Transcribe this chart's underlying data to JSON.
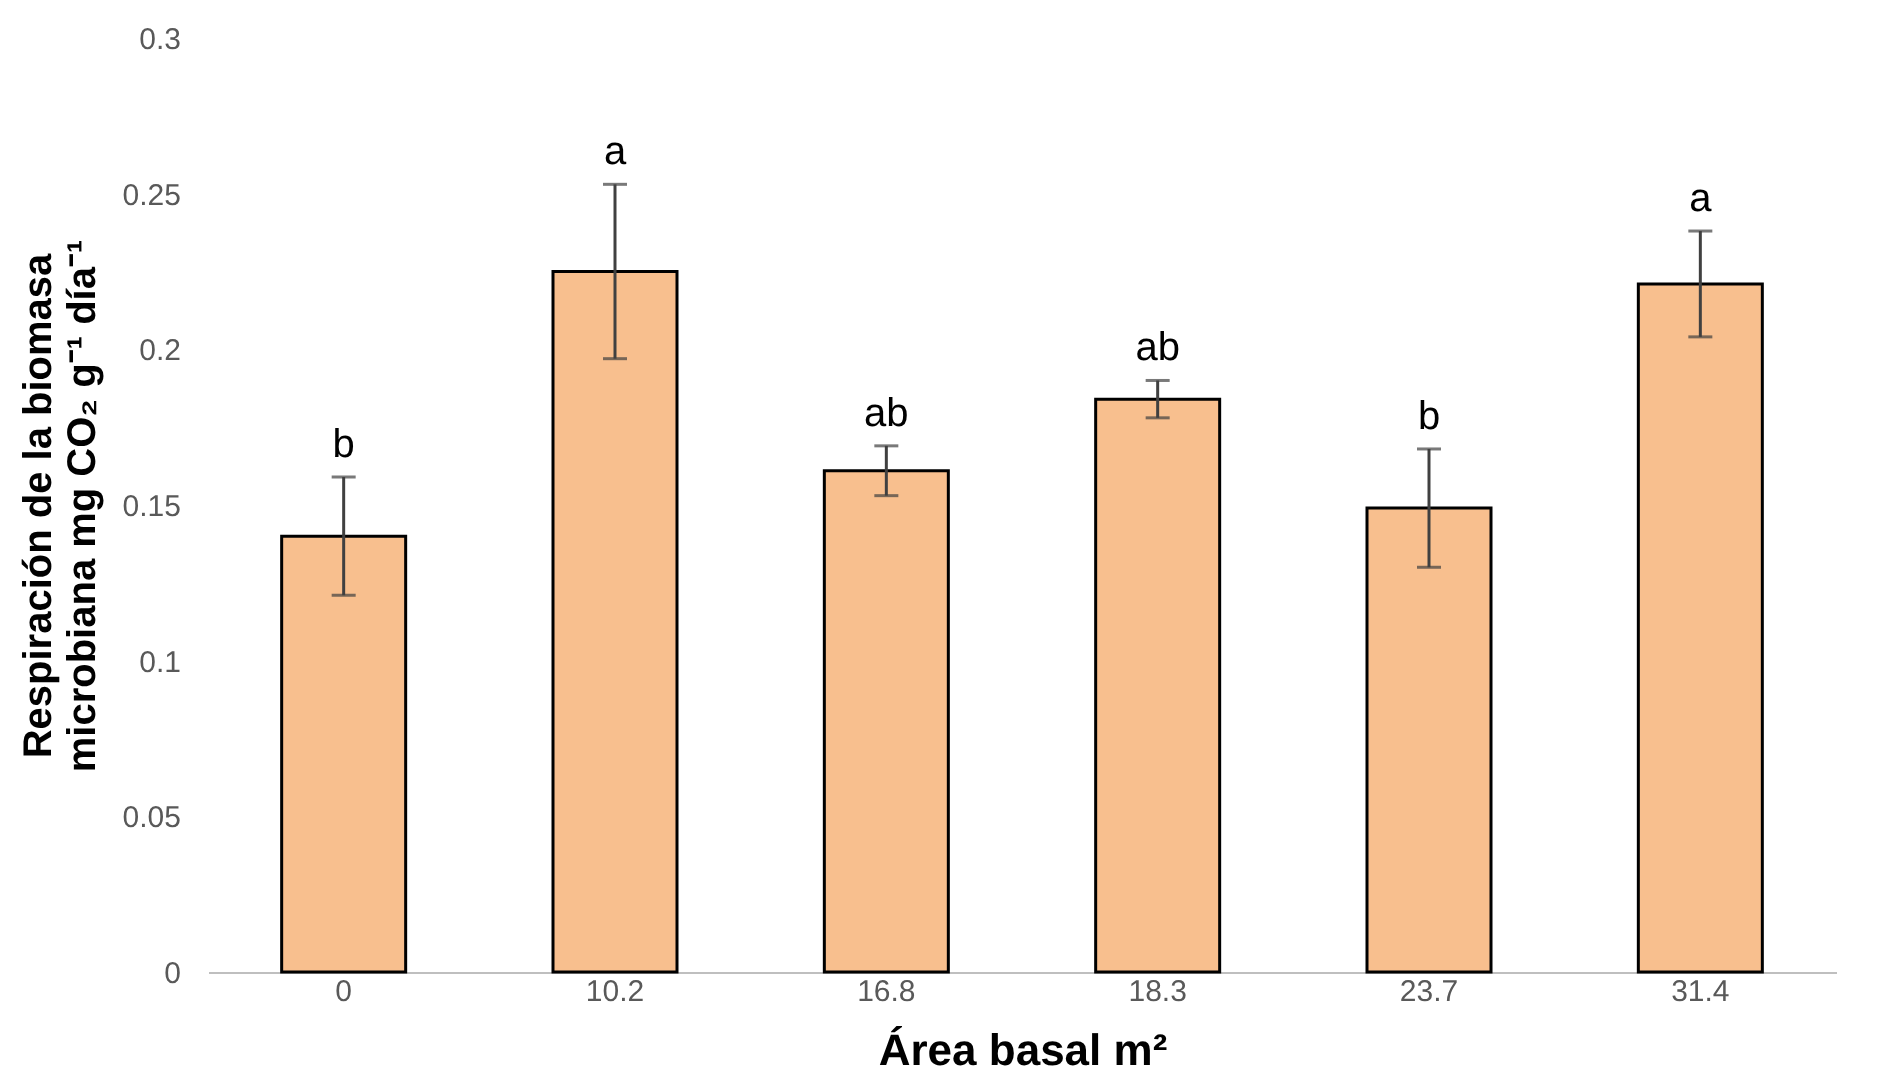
{
  "chart_data": {
    "type": "bar",
    "xlabel": "Área basal m²",
    "ylabel": "Respiración de la biomasa\nmicrobiana mg CO₂ g⁻¹ día⁻¹",
    "categories": [
      "0",
      "10.2",
      "16.8",
      "18.3",
      "23.7",
      "31.4"
    ],
    "values": [
      0.14,
      0.225,
      0.161,
      0.184,
      0.149,
      0.221
    ],
    "errors": [
      0.019,
      0.028,
      0.008,
      0.006,
      0.019,
      0.017
    ],
    "color": "#f8bf8e",
    "ylim": [
      0,
      0.3
    ],
    "yticks": [
      0,
      0.05,
      0.1,
      0.15,
      0.2,
      0.25,
      0.3
    ],
    "grid": false,
    "annotations": [
      {
        "text": "b",
        "x": "0",
        "y": 0.159
      },
      {
        "text": "a",
        "x": "10.2",
        "y": 0.253
      },
      {
        "text": "ab",
        "x": "16.8",
        "y": 0.169
      },
      {
        "text": "ab",
        "x": "18.3",
        "y": 0.19
      },
      {
        "text": "b",
        "x": "23.7",
        "y": 0.168
      },
      {
        "text": "a",
        "x": "31.4",
        "y": 0.238
      }
    ]
  }
}
